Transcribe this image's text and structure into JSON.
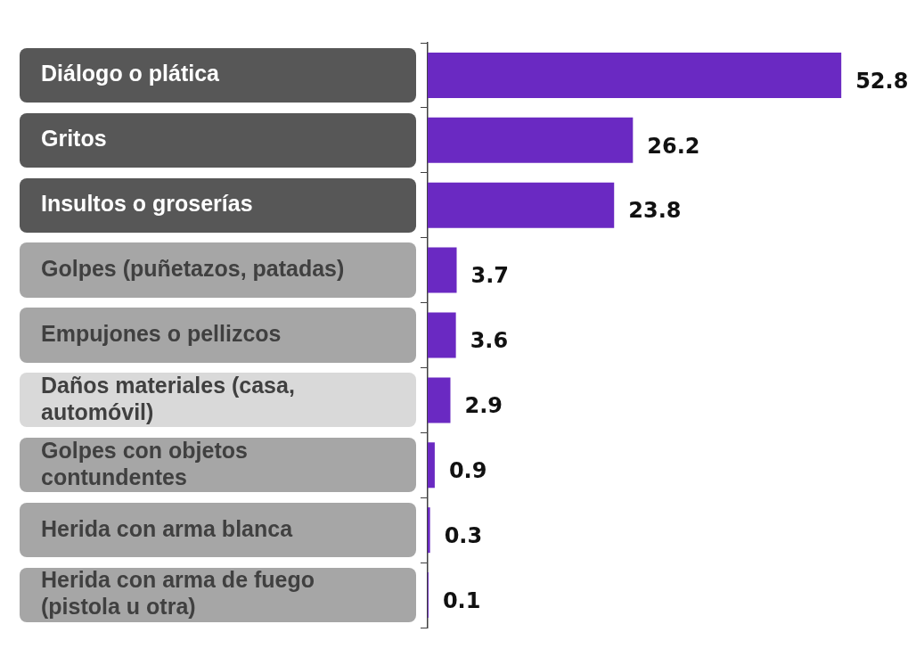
{
  "chart_data": {
    "type": "bar",
    "orientation": "horizontal",
    "categories": [
      "Diálogo o plática",
      "Gritos",
      "Insultos o groserías",
      "Golpes (puñetazos, patadas)",
      "Empujones o pellizcos",
      "Daños materiales (casa, automóvil)",
      "Golpes con objetos contundentes",
      "Herida con arma blanca",
      "Herida con arma de fuego (pistola u otra)"
    ],
    "values": [
      52.8,
      26.2,
      23.8,
      3.7,
      3.6,
      2.9,
      0.9,
      0.3,
      0.1
    ],
    "color": "#6a29c2",
    "data_labels": true,
    "grid": false,
    "legend": false,
    "tick_labels": "y"
  }
}
